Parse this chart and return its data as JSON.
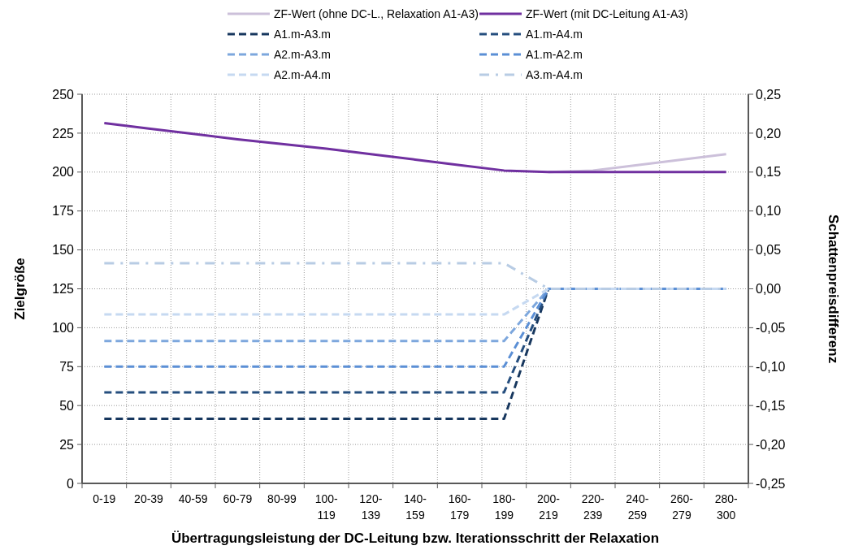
{
  "chart_data": {
    "type": "line",
    "categories": [
      "0-19",
      "20-39",
      "40-59",
      "60-79",
      "80-99",
      "100-\n119",
      "120-\n139",
      "140-\n159",
      "160-\n179",
      "180-\n199",
      "200-\n219",
      "220-\n239",
      "240-\n259",
      "260-\n279",
      "280-\n300"
    ],
    "xlabel": "Übertragungsleistung der DC-Leitung bzw. Iterationsschritt der Relaxation",
    "ylabel": "Zielgröße",
    "y2label": "Schattenpreisdifferenz",
    "ylim": [
      0,
      250
    ],
    "yticks": [
      0,
      25,
      50,
      75,
      100,
      125,
      150,
      175,
      200,
      225,
      250
    ],
    "y2lim": [
      -0.25,
      0.25
    ],
    "y2ticks": [
      {
        "value": -0.25,
        "label": "-0,25"
      },
      {
        "value": -0.2,
        "label": "-0,20"
      },
      {
        "value": -0.15,
        "label": "-0,15"
      },
      {
        "value": -0.1,
        "label": "-0,10"
      },
      {
        "value": -0.05,
        "label": "-0,05"
      },
      {
        "value": 0,
        "label": "0,00"
      },
      {
        "value": 0.05,
        "label": "0,05"
      },
      {
        "value": 0.1,
        "label": "0,10"
      },
      {
        "value": 0.15,
        "label": "0,15"
      },
      {
        "value": 0.2,
        "label": "0,20"
      },
      {
        "value": 0.25,
        "label": "0,25"
      }
    ],
    "grid": true,
    "legend": "top",
    "marker": "none",
    "series": [
      {
        "name": "ZF-Wert (ohne DC-L., Relaxation A1-A3)",
        "color": "#ccc0da",
        "line_style": "solid",
        "values": [
          null,
          null,
          null,
          null,
          null,
          null,
          null,
          null,
          null,
          null,
          200,
          201,
          204.5,
          208,
          211.5
        ]
      },
      {
        "name": "ZF-Wert (mit DC-Leitung A1-A3)",
        "color": "#7030a0",
        "line_style": "solid",
        "values": [
          231.5,
          228,
          224.5,
          221,
          218,
          215,
          211.5,
          208,
          204.5,
          201,
          200,
          200,
          200,
          200,
          200
        ]
      },
      {
        "name": "A1.m-A3.m",
        "color": "#17375e",
        "line_style": "dashed",
        "axis": "y2",
        "values": [
          -0.167,
          -0.167,
          -0.167,
          -0.167,
          -0.167,
          -0.167,
          -0.167,
          -0.167,
          -0.167,
          -0.167,
          0,
          0,
          0,
          0,
          0
        ]
      },
      {
        "name": "A1.m-A4.m",
        "color": "#254e7e",
        "line_style": "dashed",
        "axis": "y2",
        "values": [
          -0.133,
          -0.133,
          -0.133,
          -0.133,
          -0.133,
          -0.133,
          -0.133,
          -0.133,
          -0.133,
          -0.133,
          0,
          null,
          null,
          null,
          null
        ]
      },
      {
        "name": "A2.m-A3.m",
        "color": "#7da7dd",
        "line_style": "dashed",
        "axis": "y2",
        "values": [
          -0.067,
          -0.067,
          -0.067,
          -0.067,
          -0.067,
          -0.067,
          -0.067,
          -0.067,
          -0.067,
          -0.067,
          0,
          0,
          0,
          0,
          0
        ]
      },
      {
        "name": "A1.m-A2.m",
        "color": "#5b8fd5",
        "line_style": "dashed",
        "axis": "y2",
        "values": [
          -0.1,
          -0.1,
          -0.1,
          -0.1,
          -0.1,
          -0.1,
          -0.1,
          -0.1,
          -0.1,
          -0.1,
          0,
          0,
          0,
          0,
          0
        ]
      },
      {
        "name": "A2.m-A4.m",
        "color": "#c6d9f1",
        "line_style": "dashed",
        "axis": "y2",
        "values": [
          -0.033,
          -0.033,
          -0.033,
          -0.033,
          -0.033,
          -0.033,
          -0.033,
          -0.033,
          -0.033,
          -0.033,
          0,
          0,
          0,
          0,
          0
        ]
      },
      {
        "name": "A3.m-A4.m",
        "color": "#b8cce4",
        "line_style": "dashdot",
        "axis": "y2",
        "values": [
          0.033,
          0.033,
          0.033,
          0.033,
          0.033,
          0.033,
          0.033,
          0.033,
          0.033,
          0.033,
          0,
          0,
          0,
          0,
          0
        ]
      }
    ]
  }
}
